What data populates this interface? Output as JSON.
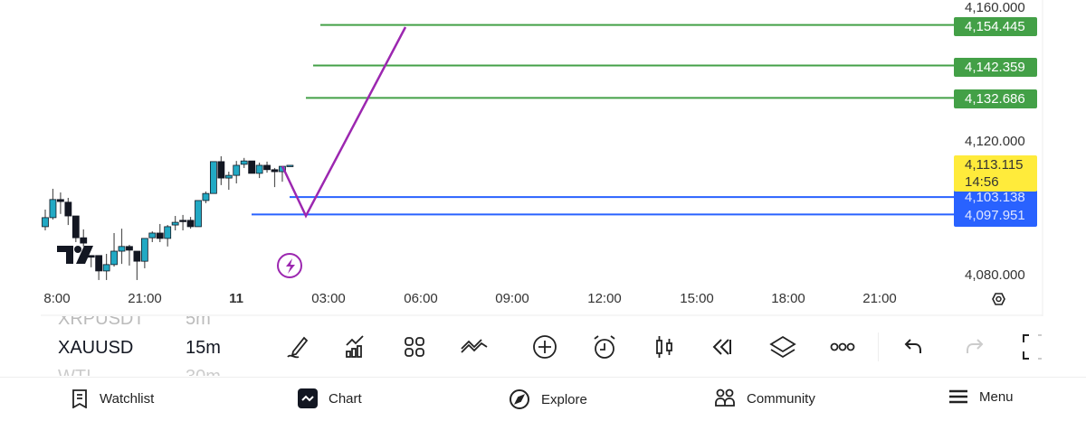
{
  "chart": {
    "symbol": "XAUUSD",
    "timeframe": "15m",
    "price_axis": [
      "4,160.000",
      "4,120.000",
      "4,080.000"
    ],
    "time_axis": [
      "8:00",
      "21:00",
      "11",
      "03:00",
      "06:00",
      "09:00",
      "12:00",
      "15:00",
      "18:00",
      "21:00"
    ],
    "candle_colors": {
      "up": "#22a9c4",
      "down": "#131722"
    },
    "candles_ohlc": [
      [
        4094.3,
        4099.4,
        4093.2,
        4097.0
      ],
      [
        4097.0,
        4105.6,
        4096.4,
        4102.4
      ],
      [
        4102.4,
        4104.5,
        4098.1,
        4101.8
      ],
      [
        4101.6,
        4102.9,
        4094.8,
        4097.5
      ],
      [
        4097.5,
        4097.5,
        4089.7,
        4091.0
      ],
      [
        4091.0,
        4093.5,
        4088.4,
        4089.4
      ],
      [
        4085.7,
        4085.7,
        4082.2,
        4085.2
      ],
      [
        4085.7,
        4085.7,
        4078.4,
        4081.1
      ],
      [
        4081.1,
        4086.2,
        4078.4,
        4083.0
      ],
      [
        4083.0,
        4092.4,
        4082.4,
        4087.0
      ],
      [
        4087.0,
        4093.7,
        4083.2,
        4088.4
      ],
      [
        4088.4,
        4088.9,
        4082.7,
        4087.3
      ],
      [
        4087.0,
        4087.0,
        4078.4,
        4084.0
      ],
      [
        4084.0,
        4090.8,
        4081.9,
        4090.8
      ],
      [
        4091.0,
        4092.9,
        4089.7,
        4092.4
      ],
      [
        4092.4,
        4095.1,
        4089.7,
        4090.8
      ],
      [
        4090.8,
        4094.8,
        4088.4,
        4094.3
      ],
      [
        4094.8,
        4097.5,
        4093.2,
        4095.6
      ],
      [
        4096.2,
        4097.8,
        4093.2,
        4095.9
      ],
      [
        4096.2,
        4097.2,
        4093.7,
        4094.3
      ],
      [
        4094.3,
        4102.1,
        4094.3,
        4102.1
      ],
      [
        4102.1,
        4104.8,
        4101.3,
        4104.2
      ],
      [
        4104.2,
        4113.7,
        4104.2,
        4113.7
      ],
      [
        4113.7,
        4115.3,
        4106.7,
        4108.8
      ],
      [
        4108.8,
        4110.7,
        4105.3,
        4109.6
      ],
      [
        4109.6,
        4113.9,
        4107.2,
        4112.6
      ],
      [
        4112.9,
        4114.8,
        4111.8,
        4113.9
      ],
      [
        4113.9,
        4113.9,
        4110.2,
        4110.2
      ],
      [
        4110.2,
        4113.4,
        4108.8,
        4112.6
      ],
      [
        4112.6,
        4113.7,
        4110.4,
        4111.3
      ],
      [
        4111.3,
        4111.8,
        4106.1,
        4110.7
      ],
      [
        4110.7,
        4112.3,
        4107.7,
        4112.3
      ],
      [
        4112.6,
        4112.6,
        4112.6,
        4112.6
      ]
    ],
    "horizontal_lines": [
      {
        "price": 4154.445,
        "label": "4,154.445",
        "color": "#43a047"
      },
      {
        "price": 4142.359,
        "label": "4,142.359",
        "color": "#43a047"
      },
      {
        "price": 4132.686,
        "label": "4,132.686",
        "color": "#43a047"
      },
      {
        "price": 4103.138,
        "label": "4,103.138",
        "color": "#2962ff"
      },
      {
        "price": 4097.951,
        "label": "4,097.951",
        "color": "#2962ff"
      }
    ],
    "path_drawing_color": "#9c27b0",
    "current_price": {
      "label": "4,113.115",
      "countdown": "14:56",
      "color": "#ffeb3b"
    }
  },
  "watchlist_strip": [
    {
      "symbol": "XRPUSDT",
      "tf": "5m"
    },
    {
      "symbol": "XAUUSD",
      "tf": "15m"
    },
    {
      "symbol": "WTI",
      "tf": "30m"
    }
  ],
  "toolbar_icons": [
    "pencil-icon",
    "indicators-icon",
    "grid-icon",
    "strategy-icon",
    "add-icon",
    "alarm-icon",
    "candles-icon",
    "replay-icon",
    "layers-icon",
    "more-icon",
    "undo-icon",
    "redo-icon",
    "fullscreen-icon"
  ],
  "nav": {
    "watchlist": "Watchlist",
    "chart": "Chart",
    "explore": "Explore",
    "community": "Community",
    "menu": "Menu"
  }
}
